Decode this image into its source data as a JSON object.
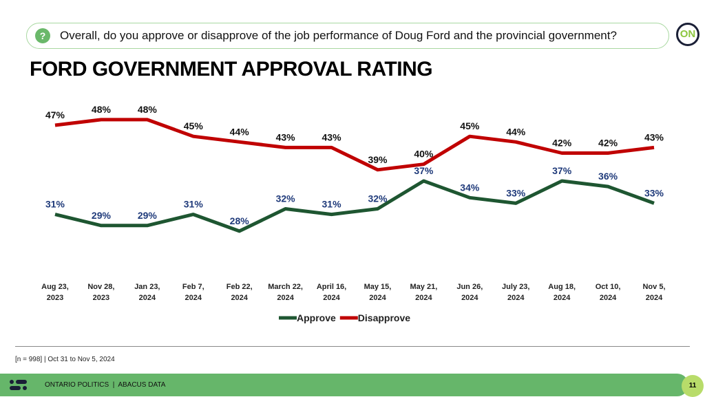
{
  "question": {
    "text": "Overall, do you approve or disapprove of the job performance of Doug Ford and the provincial government?",
    "icon": "question-icon"
  },
  "logo": "ON",
  "title": "FORD GOVERNMENT APPROVAL RATING",
  "chart_data": {
    "type": "line",
    "categories": [
      [
        "Aug 23,",
        "2023"
      ],
      [
        "Nov 28,",
        "2023"
      ],
      [
        "Jan 23,",
        "2024"
      ],
      [
        "Feb 7,",
        "2024"
      ],
      [
        "Feb 22,",
        "2024"
      ],
      [
        "March 22,",
        "2024"
      ],
      [
        "April 16,",
        "2024"
      ],
      [
        "May 15,",
        "2024"
      ],
      [
        "May 21,",
        "2024"
      ],
      [
        "Jun 26,",
        "2024"
      ],
      [
        "July 23,",
        "2024"
      ],
      [
        "Aug 18,",
        "2024"
      ],
      [
        "Oct 10,",
        "2024"
      ],
      [
        "Nov 5,",
        "2024"
      ]
    ],
    "series": [
      {
        "name": "Approve",
        "color": "#1e5631",
        "label_color": "#1f3a7a",
        "values": [
          31,
          29,
          29,
          31,
          28,
          32,
          31,
          32,
          37,
          34,
          33,
          37,
          36,
          33
        ]
      },
      {
        "name": "Disapprove",
        "color": "#c00000",
        "label_color": "#111111",
        "values": [
          47,
          48,
          48,
          45,
          44,
          43,
          43,
          39,
          40,
          45,
          44,
          42,
          42,
          43
        ]
      }
    ],
    "value_suffix": "%",
    "legend": "bottom",
    "grid": false
  },
  "footer": {
    "note": "[n = 998] | Oct 31 to Nov 5, 2024",
    "brand": "ONTARIO POLITICS  |  ABACUS DATA",
    "page": "11"
  }
}
